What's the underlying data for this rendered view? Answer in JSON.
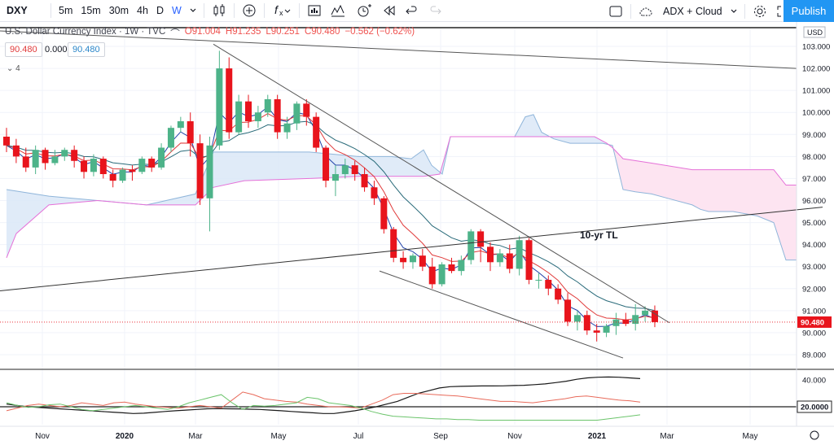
{
  "toolbar": {
    "symbol": "DXY",
    "intervals": [
      "5m",
      "15m",
      "30m",
      "4h",
      "D",
      "W"
    ],
    "active_interval": "W",
    "indicators_label": "ADX + Cloud",
    "publish_label": "Publish"
  },
  "legend": {
    "title": "U.S. Dollar Currency Index · 1W · TVC",
    "open": "O91.004",
    "high": "H91.235",
    "low": "L90.251",
    "close": "C90.480",
    "change": "−0.562 (−0.62%)",
    "val1": "90.480",
    "val2": "0.000",
    "val3": "90.480",
    "indicator_count": "4"
  },
  "price_axis": {
    "currency": "USD",
    "ticks": [
      "103.000",
      "102.000",
      "101.000",
      "100.000",
      "99.000",
      "98.000",
      "97.000",
      "96.000",
      "95.000",
      "94.000",
      "93.000",
      "92.000",
      "91.000",
      "90.000",
      "89.000"
    ],
    "last_price": "90.480"
  },
  "adx_axis": {
    "ticks": [
      "40.000"
    ],
    "level": "20.0000"
  },
  "time_axis": {
    "labels": [
      "Nov",
      "2020",
      "Mar",
      "May",
      "Jul",
      "Sep",
      "Nov",
      "2021",
      "Mar",
      "May"
    ]
  },
  "annotations": {
    "trendline_label": "10-yr TL"
  },
  "colors": {
    "up": "#4db389",
    "down": "#e8141c",
    "cloud_fill": "#dbe8f7",
    "cloud_fill_pink": "#fde4f1",
    "span_a": "#8fb5da",
    "span_b": "#e571d8",
    "ema_fast": "#1e3fa8",
    "ema_mid": "#e03a3a",
    "ema_slow": "#2a6b7a",
    "adx": "#1a1a1a",
    "di_plus": "#6bc46b",
    "di_minus": "#e86a5a",
    "accent": "#2962ff"
  },
  "chart_data": {
    "type": "candlestick",
    "title": "U.S. Dollar Currency Index",
    "ylim": [
      88.3,
      103.9
    ],
    "candles": [
      [
        98.9,
        98.5,
        99.3,
        98.2
      ],
      [
        98.5,
        98.0,
        98.8,
        97.7
      ],
      [
        98.0,
        97.5,
        98.4,
        97.3
      ],
      [
        97.5,
        98.3,
        98.5,
        97.2
      ],
      [
        98.3,
        97.7,
        98.4,
        97.4
      ],
      [
        97.7,
        98.0,
        98.3,
        97.6
      ],
      [
        98.0,
        98.3,
        98.4,
        97.8
      ],
      [
        98.3,
        97.8,
        98.5,
        97.5
      ],
      [
        97.8,
        97.3,
        98.0,
        97.0
      ],
      [
        97.3,
        97.9,
        98.1,
        97.1
      ],
      [
        97.9,
        97.2,
        98.0,
        97.0
      ],
      [
        97.2,
        96.9,
        97.4,
        96.6
      ],
      [
        96.9,
        97.4,
        97.5,
        96.8
      ],
      [
        97.4,
        97.3,
        97.6,
        96.9
      ],
      [
        97.3,
        97.9,
        98.0,
        97.2
      ],
      [
        97.9,
        97.5,
        98.0,
        97.3
      ],
      [
        97.5,
        98.4,
        98.6,
        97.4
      ],
      [
        98.4,
        99.3,
        99.4,
        98.2
      ],
      [
        99.3,
        99.6,
        99.8,
        99.1
      ],
      [
        99.6,
        98.6,
        100.0,
        98.0
      ],
      [
        98.6,
        96.1,
        99.0,
        95.8
      ],
      [
        96.1,
        98.5,
        98.9,
        94.6
      ],
      [
        98.5,
        102.0,
        102.8,
        98.3
      ],
      [
        102.0,
        99.1,
        102.5,
        98.8
      ],
      [
        99.1,
        100.5,
        100.8,
        99.0
      ],
      [
        100.5,
        99.6,
        100.8,
        99.3
      ],
      [
        99.6,
        100.0,
        100.3,
        99.3
      ],
      [
        100.0,
        100.6,
        100.8,
        99.8
      ],
      [
        100.6,
        99.1,
        100.8,
        98.8
      ],
      [
        99.1,
        99.5,
        99.8,
        98.8
      ],
      [
        99.5,
        100.4,
        100.5,
        99.2
      ],
      [
        100.4,
        99.8,
        100.6,
        99.4
      ],
      [
        99.8,
        98.4,
        100.0,
        98.2
      ],
      [
        98.4,
        96.9,
        98.5,
        96.6
      ],
      [
        96.9,
        97.2,
        97.6,
        96.2
      ],
      [
        97.2,
        97.6,
        97.9,
        97.0
      ],
      [
        97.6,
        97.2,
        97.8,
        96.9
      ],
      [
        97.2,
        96.6,
        97.5,
        96.4
      ],
      [
        96.6,
        96.1,
        96.9,
        95.8
      ],
      [
        96.1,
        94.7,
        96.2,
        94.5
      ],
      [
        94.7,
        93.4,
        94.8,
        93.2
      ],
      [
        93.4,
        93.2,
        93.7,
        92.9
      ],
      [
        93.2,
        93.5,
        93.6,
        92.9
      ],
      [
        93.5,
        93.0,
        93.8,
        92.8
      ],
      [
        93.0,
        92.2,
        93.4,
        92.0
      ],
      [
        92.2,
        93.1,
        93.2,
        92.1
      ],
      [
        93.1,
        92.8,
        93.4,
        92.7
      ],
      [
        92.8,
        93.3,
        93.5,
        92.6
      ],
      [
        93.3,
        94.6,
        94.7,
        93.1
      ],
      [
        94.6,
        93.9,
        94.7,
        93.2
      ],
      [
        93.9,
        93.2,
        94.1,
        92.8
      ],
      [
        93.2,
        93.6,
        93.8,
        93.0
      ],
      [
        93.6,
        92.9,
        94.0,
        92.7
      ],
      [
        92.9,
        94.2,
        94.4,
        92.6
      ],
      [
        94.2,
        92.4,
        94.3,
        92.2
      ],
      [
        92.4,
        92.4,
        92.7,
        92.0
      ],
      [
        92.4,
        92.0,
        92.6,
        91.7
      ],
      [
        92.0,
        91.5,
        92.2,
        91.3
      ],
      [
        91.5,
        90.5,
        91.8,
        90.3
      ],
      [
        90.5,
        90.8,
        91.0,
        90.1
      ],
      [
        90.8,
        90.1,
        91.0,
        89.9
      ],
      [
        90.1,
        90.0,
        90.4,
        89.6
      ],
      [
        90.0,
        90.3,
        90.4,
        89.8
      ],
      [
        90.3,
        90.6,
        90.9,
        89.9
      ],
      [
        90.6,
        90.4,
        90.9,
        90.3
      ],
      [
        90.4,
        90.8,
        91.3,
        90.1
      ],
      [
        90.8,
        91.0,
        91.2,
        90.5
      ],
      [
        91.004,
        90.48,
        91.235,
        90.251
      ]
    ],
    "y_ticks": [
      103,
      102,
      101,
      100,
      99,
      98,
      97,
      96,
      95,
      94,
      93,
      92,
      91,
      90,
      89
    ]
  }
}
